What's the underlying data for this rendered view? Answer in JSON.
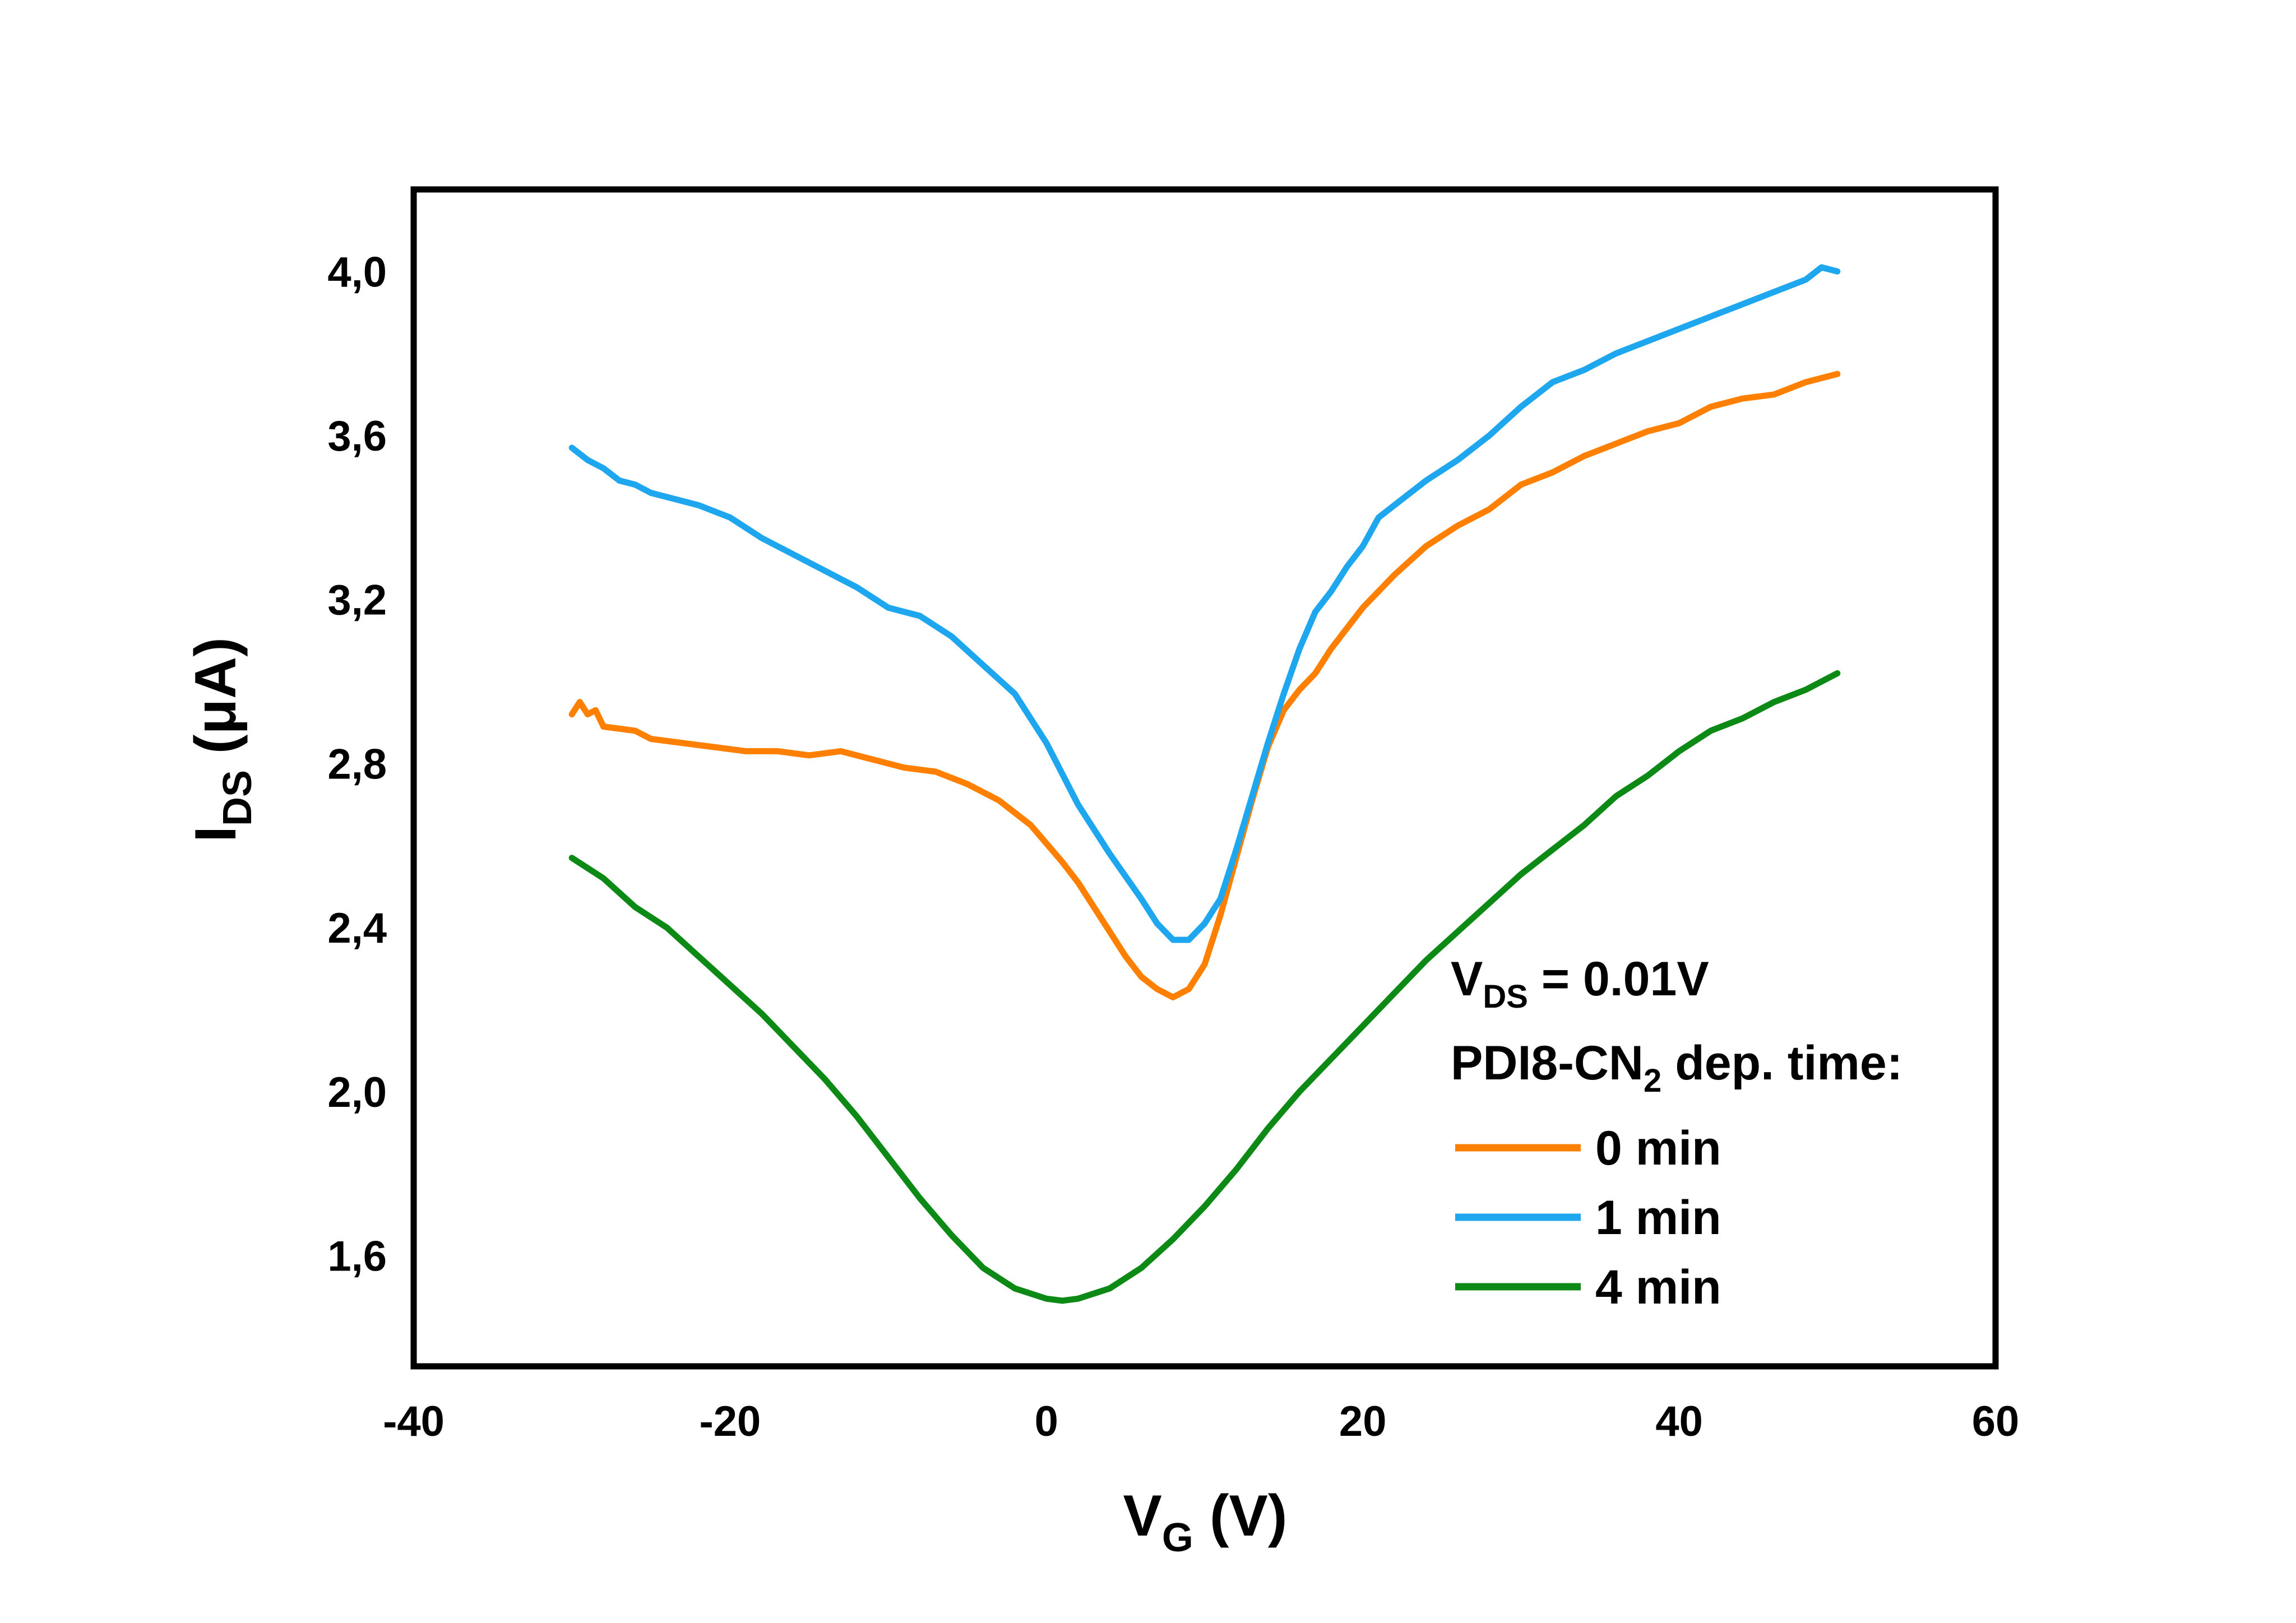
{
  "chart_data": {
    "type": "line",
    "xlabel": {
      "main": "V",
      "sub": "G",
      "unit": " (V)"
    },
    "ylabel": {
      "main": "I",
      "sub": "DS",
      "unit": " (μA)"
    },
    "xlim": [
      -40,
      60
    ],
    "ylim": [
      1.33,
      4.2
    ],
    "xticks": [
      {
        "value": -40,
        "label": "-40"
      },
      {
        "value": -20,
        "label": "-20"
      },
      {
        "value": 0,
        "label": "0"
      },
      {
        "value": 20,
        "label": "20"
      },
      {
        "value": 40,
        "label": "40"
      },
      {
        "value": 60,
        "label": "60"
      }
    ],
    "yticks": [
      {
        "value": 1.6,
        "label": "1,6"
      },
      {
        "value": 2.0,
        "label": "2,0"
      },
      {
        "value": 2.4,
        "label": "2,4"
      },
      {
        "value": 2.8,
        "label": "2,8"
      },
      {
        "value": 3.2,
        "label": "3,2"
      },
      {
        "value": 3.6,
        "label": "3,6"
      },
      {
        "value": 4.0,
        "label": "4,0"
      }
    ],
    "grid": false,
    "legend": {
      "position": "bottom-right",
      "line1": {
        "main": "V",
        "sub": "DS",
        "rest": " = 0.01V"
      },
      "line2": {
        "main": "PDI8-CN",
        "sub": "2",
        "rest": " dep. time:"
      }
    },
    "series": [
      {
        "name": "0 min",
        "color": "#ff8000",
        "points": [
          [
            -30,
            2.92
          ],
          [
            -29.5,
            2.95
          ],
          [
            -29,
            2.92
          ],
          [
            -28.5,
            2.93
          ],
          [
            -28,
            2.89
          ],
          [
            -26,
            2.88
          ],
          [
            -25,
            2.86
          ],
          [
            -23,
            2.85
          ],
          [
            -21,
            2.84
          ],
          [
            -19,
            2.83
          ],
          [
            -17,
            2.83
          ],
          [
            -15,
            2.82
          ],
          [
            -13,
            2.83
          ],
          [
            -11,
            2.81
          ],
          [
            -9,
            2.79
          ],
          [
            -7,
            2.78
          ],
          [
            -5,
            2.75
          ],
          [
            -3,
            2.71
          ],
          [
            -1,
            2.65
          ],
          [
            1,
            2.56
          ],
          [
            2,
            2.51
          ],
          [
            3,
            2.45
          ],
          [
            4,
            2.39
          ],
          [
            5,
            2.33
          ],
          [
            6,
            2.28
          ],
          [
            7,
            2.25
          ],
          [
            8,
            2.23
          ],
          [
            9,
            2.25
          ],
          [
            10,
            2.31
          ],
          [
            11,
            2.43
          ],
          [
            12,
            2.57
          ],
          [
            13,
            2.71
          ],
          [
            14,
            2.84
          ],
          [
            15,
            2.93
          ],
          [
            16,
            2.98
          ],
          [
            17,
            3.02
          ],
          [
            18,
            3.08
          ],
          [
            19,
            3.13
          ],
          [
            20,
            3.18
          ],
          [
            22,
            3.26
          ],
          [
            24,
            3.33
          ],
          [
            26,
            3.38
          ],
          [
            28,
            3.42
          ],
          [
            30,
            3.48
          ],
          [
            32,
            3.51
          ],
          [
            34,
            3.55
          ],
          [
            36,
            3.58
          ],
          [
            38,
            3.61
          ],
          [
            40,
            3.63
          ],
          [
            42,
            3.67
          ],
          [
            44,
            3.69
          ],
          [
            46,
            3.7
          ],
          [
            48,
            3.73
          ],
          [
            50,
            3.75
          ]
        ]
      },
      {
        "name": "1 min",
        "color": "#1ea7ef",
        "points": [
          [
            -30,
            3.57
          ],
          [
            -29,
            3.54
          ],
          [
            -28,
            3.52
          ],
          [
            -27,
            3.49
          ],
          [
            -26,
            3.48
          ],
          [
            -25,
            3.46
          ],
          [
            -24,
            3.45
          ],
          [
            -22,
            3.43
          ],
          [
            -20,
            3.4
          ],
          [
            -18,
            3.35
          ],
          [
            -16,
            3.31
          ],
          [
            -14,
            3.27
          ],
          [
            -12,
            3.23
          ],
          [
            -10,
            3.18
          ],
          [
            -8,
            3.16
          ],
          [
            -6,
            3.11
          ],
          [
            -4,
            3.04
          ],
          [
            -2,
            2.97
          ],
          [
            0,
            2.85
          ],
          [
            2,
            2.7
          ],
          [
            4,
            2.58
          ],
          [
            6,
            2.47
          ],
          [
            7,
            2.41
          ],
          [
            8,
            2.37
          ],
          [
            9,
            2.37
          ],
          [
            10,
            2.41
          ],
          [
            11,
            2.47
          ],
          [
            12,
            2.59
          ],
          [
            13,
            2.72
          ],
          [
            14,
            2.85
          ],
          [
            15,
            2.97
          ],
          [
            16,
            3.08
          ],
          [
            17,
            3.17
          ],
          [
            18,
            3.22
          ],
          [
            19,
            3.28
          ],
          [
            20,
            3.33
          ],
          [
            21,
            3.4
          ],
          [
            22,
            3.43
          ],
          [
            24,
            3.49
          ],
          [
            26,
            3.54
          ],
          [
            28,
            3.6
          ],
          [
            30,
            3.67
          ],
          [
            32,
            3.73
          ],
          [
            34,
            3.76
          ],
          [
            36,
            3.8
          ],
          [
            38,
            3.83
          ],
          [
            40,
            3.86
          ],
          [
            42,
            3.89
          ],
          [
            44,
            3.92
          ],
          [
            46,
            3.95
          ],
          [
            48,
            3.98
          ],
          [
            49,
            4.01
          ],
          [
            50,
            4.0
          ]
        ]
      },
      {
        "name": "4 min",
        "color": "#0d8a16",
        "points": [
          [
            -30,
            2.57
          ],
          [
            -28,
            2.52
          ],
          [
            -26,
            2.45
          ],
          [
            -24,
            2.4
          ],
          [
            -22,
            2.33
          ],
          [
            -20,
            2.26
          ],
          [
            -18,
            2.19
          ],
          [
            -16,
            2.11
          ],
          [
            -14,
            2.03
          ],
          [
            -12,
            1.94
          ],
          [
            -10,
            1.84
          ],
          [
            -8,
            1.74
          ],
          [
            -6,
            1.65
          ],
          [
            -4,
            1.57
          ],
          [
            -2,
            1.52
          ],
          [
            0,
            1.495
          ],
          [
            1,
            1.49
          ],
          [
            2,
            1.495
          ],
          [
            4,
            1.52
          ],
          [
            6,
            1.57
          ],
          [
            8,
            1.64
          ],
          [
            10,
            1.72
          ],
          [
            12,
            1.81
          ],
          [
            14,
            1.91
          ],
          [
            16,
            2.0
          ],
          [
            18,
            2.08
          ],
          [
            20,
            2.16
          ],
          [
            22,
            2.24
          ],
          [
            24,
            2.32
          ],
          [
            26,
            2.39
          ],
          [
            28,
            2.46
          ],
          [
            30,
            2.53
          ],
          [
            32,
            2.59
          ],
          [
            34,
            2.65
          ],
          [
            36,
            2.72
          ],
          [
            38,
            2.77
          ],
          [
            40,
            2.83
          ],
          [
            42,
            2.88
          ],
          [
            44,
            2.91
          ],
          [
            46,
            2.95
          ],
          [
            48,
            2.98
          ],
          [
            50,
            3.02
          ]
        ]
      }
    ]
  }
}
